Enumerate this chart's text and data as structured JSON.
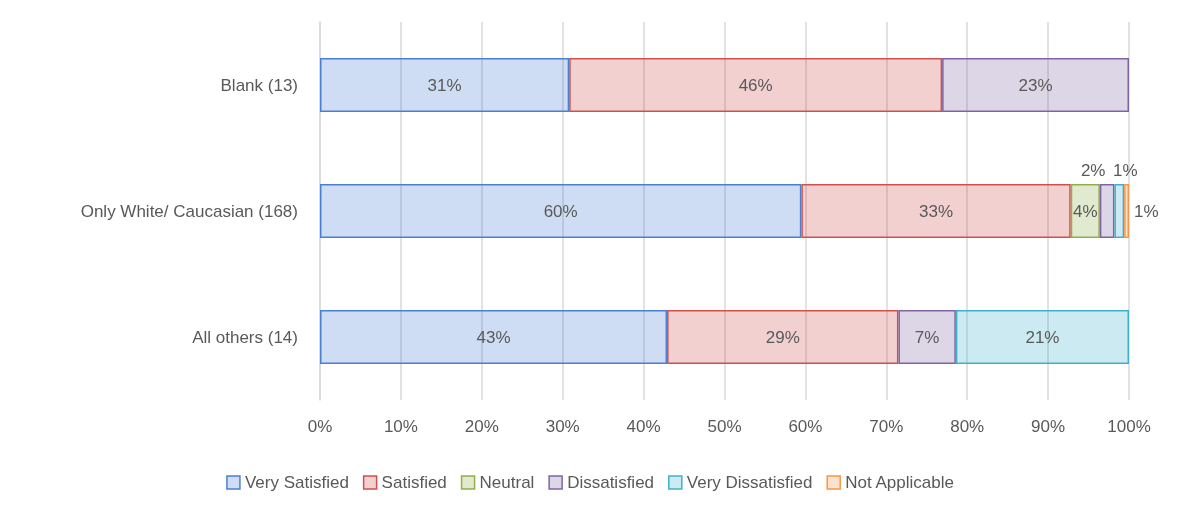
{
  "chart_data": {
    "type": "bar",
    "orientation": "horizontal",
    "stacked": true,
    "categories": [
      "Blank (13)",
      "Only White/ Caucasian (168)",
      "All others (14)"
    ],
    "series": [
      {
        "name": "Very Satisfied",
        "color": "#4a7fd4",
        "values": [
          30.8,
          59.5,
          42.9
        ],
        "value_labels": [
          "31%",
          "60%",
          "43%"
        ]
      },
      {
        "name": "Satisfied",
        "color": "#d0504d",
        "values": [
          46.1,
          33.3,
          28.6
        ],
        "value_labels": [
          "46%",
          "33%",
          "29%"
        ]
      },
      {
        "name": "Neutral",
        "color": "#8fb04a",
        "values": [
          null,
          3.6,
          null
        ],
        "value_labels": [
          null,
          "4%",
          null
        ]
      },
      {
        "name": "Dissatisfied",
        "color": "#8064a2",
        "values": [
          23.1,
          1.8,
          7.1
        ],
        "value_labels": [
          "23%",
          "2%",
          "7%"
        ]
      },
      {
        "name": "Very Dissatisfied",
        "color": "#3fb1cc",
        "values": [
          null,
          1.2,
          21.4
        ],
        "value_labels": [
          null,
          "1%",
          "21%"
        ]
      },
      {
        "name": "Not Applicable",
        "color": "#f79646",
        "values": [
          null,
          0.6,
          null
        ],
        "value_labels": [
          null,
          "1%",
          null
        ]
      }
    ],
    "xlim": [
      0,
      100
    ],
    "xticks": [
      {
        "value": 0,
        "label": "0%"
      },
      {
        "value": 10,
        "label": "10%"
      },
      {
        "value": 20,
        "label": "20%"
      },
      {
        "value": 30,
        "label": "30%"
      },
      {
        "value": 40,
        "label": "40%"
      },
      {
        "value": 50,
        "label": "50%"
      },
      {
        "value": 60,
        "label": "60%"
      },
      {
        "value": 70,
        "label": "70%"
      },
      {
        "value": 80,
        "label": "80%"
      },
      {
        "value": 90,
        "label": "90%"
      },
      {
        "value": 100,
        "label": "100%"
      }
    ],
    "grid": "x",
    "legend": "bottom"
  }
}
